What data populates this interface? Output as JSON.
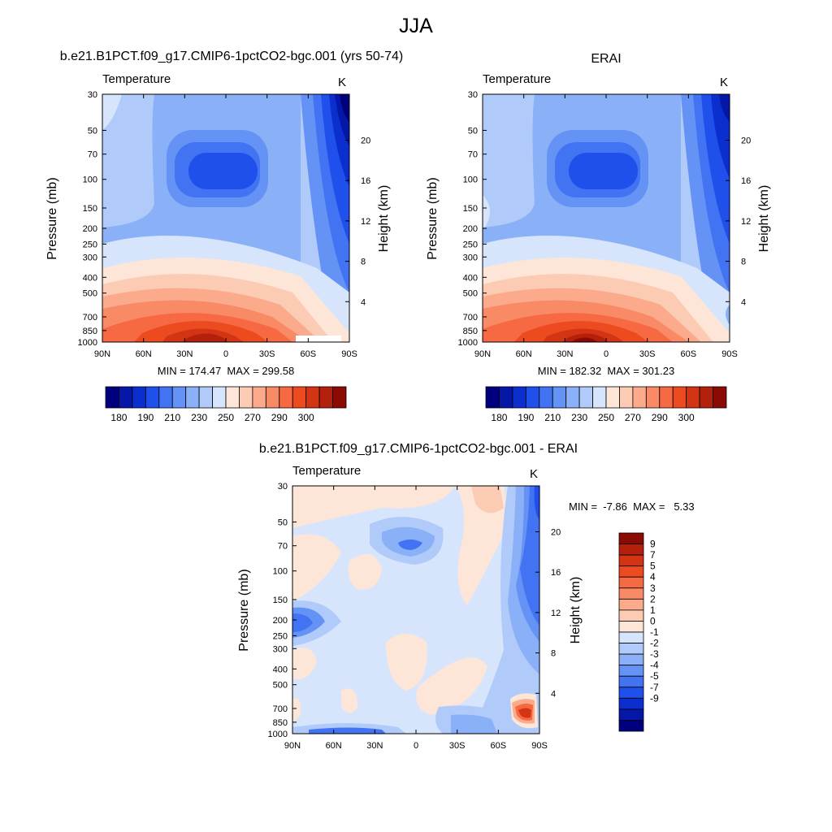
{
  "figure": {
    "title": "JJA",
    "panels": [
      {
        "id": "model",
        "title": "b.e21.B1PCT.f09_g17.CMIP6-1pctCO2-bgc.001 (yrs 50-74)",
        "variable_label": "Temperature",
        "units_label": "K",
        "min_max_text": "MIN = 174.47  MAX = 299.58"
      },
      {
        "id": "erai",
        "title": "ERAI",
        "variable_label": "Temperature",
        "units_label": "K",
        "min_max_text": "MIN = 182.32  MAX = 301.23"
      },
      {
        "id": "diff",
        "title": "b.e21.B1PCT.f09_g17.CMIP6-1pctCO2-bgc.001 - ERAI",
        "variable_label": "Temperature",
        "units_label": "K",
        "min_max_text": "MIN =  -7.86  MAX =   5.33"
      }
    ]
  },
  "axes": {
    "left_label": "Pressure (mb)",
    "right_label": "Height (km)",
    "pressure_ticks": [
      "30",
      "50",
      "70",
      "100",
      "150",
      "200",
      "250",
      "300",
      "400",
      "500",
      "700",
      "850",
      "1000"
    ],
    "height_ticks": [
      "20",
      "16",
      "12",
      "8",
      "4"
    ],
    "lat_ticks": [
      "90N",
      "60N",
      "30N",
      "0",
      "30S",
      "60S",
      "90S"
    ]
  },
  "colorbars": {
    "temperature": {
      "colors": [
        "#00007f",
        "#0417a6",
        "#0b2fce",
        "#1f50eb",
        "#4173f2",
        "#6592f5",
        "#8ab0f7",
        "#b0cbf9",
        "#d7e5fc",
        "#fde6d8",
        "#fccbb4",
        "#fbab8c",
        "#f98a66",
        "#f66942",
        "#ec4b20",
        "#d23414",
        "#b3200b",
        "#8b0a04"
      ],
      "labels": [
        "180",
        "190",
        "210",
        "230",
        "250",
        "270",
        "290",
        "300"
      ]
    },
    "difference": {
      "colors": [
        "#8b0a04",
        "#b3200b",
        "#d23414",
        "#ec4b20",
        "#f66942",
        "#f98a66",
        "#fbab8c",
        "#fccbb4",
        "#fde6d8",
        "#d7e5fc",
        "#b0cbf9",
        "#8ab0f7",
        "#6592f5",
        "#4173f2",
        "#1f50eb",
        "#0b2fce",
        "#0417a6",
        "#00007f"
      ],
      "labels": [
        "9",
        "7",
        "5",
        "4",
        "3",
        "2",
        "1",
        "0",
        "-1",
        "-2",
        "-3",
        "-4",
        "-5",
        "-7",
        "-9"
      ]
    }
  },
  "chart_data": [
    {
      "type": "heatmap",
      "title": "b.e21.B1PCT.f09_g17.CMIP6-1pctCO2-bgc.001 (yrs 50-74)",
      "subtitle": "Temperature",
      "units": "K",
      "xlabel": "",
      "ylabel": "Pressure (mb)",
      "y2label": "Height (km)",
      "x_ticks": [
        "90N",
        "60N",
        "30N",
        "0",
        "30S",
        "60S",
        "90S"
      ],
      "y_ticks": [
        30,
        50,
        70,
        100,
        150,
        200,
        250,
        300,
        400,
        500,
        700,
        850,
        1000
      ],
      "y_scale": "log",
      "min": 174.47,
      "max": 299.58
    },
    {
      "type": "heatmap",
      "title": "ERAI",
      "subtitle": "Temperature",
      "units": "K",
      "xlabel": "",
      "ylabel": "Pressure (mb)",
      "y2label": "Height (km)",
      "x_ticks": [
        "90N",
        "60N",
        "30N",
        "0",
        "30S",
        "60S",
        "90S"
      ],
      "y_ticks": [
        30,
        50,
        70,
        100,
        150,
        200,
        250,
        300,
        400,
        500,
        700,
        850,
        1000
      ],
      "y_scale": "log",
      "min": 182.32,
      "max": 301.23
    },
    {
      "type": "heatmap",
      "title": "b.e21.B1PCT.f09_g17.CMIP6-1pctCO2-bgc.001 - ERAI",
      "subtitle": "Temperature",
      "units": "K",
      "xlabel": "",
      "ylabel": "Pressure (mb)",
      "y2label": "Height (km)",
      "x_ticks": [
        "90N",
        "60N",
        "30N",
        "0",
        "30S",
        "60S",
        "90S"
      ],
      "y_ticks": [
        30,
        50,
        70,
        100,
        150,
        200,
        250,
        300,
        400,
        500,
        700,
        850,
        1000
      ],
      "y_scale": "log",
      "min": -7.86,
      "max": 5.33
    }
  ]
}
